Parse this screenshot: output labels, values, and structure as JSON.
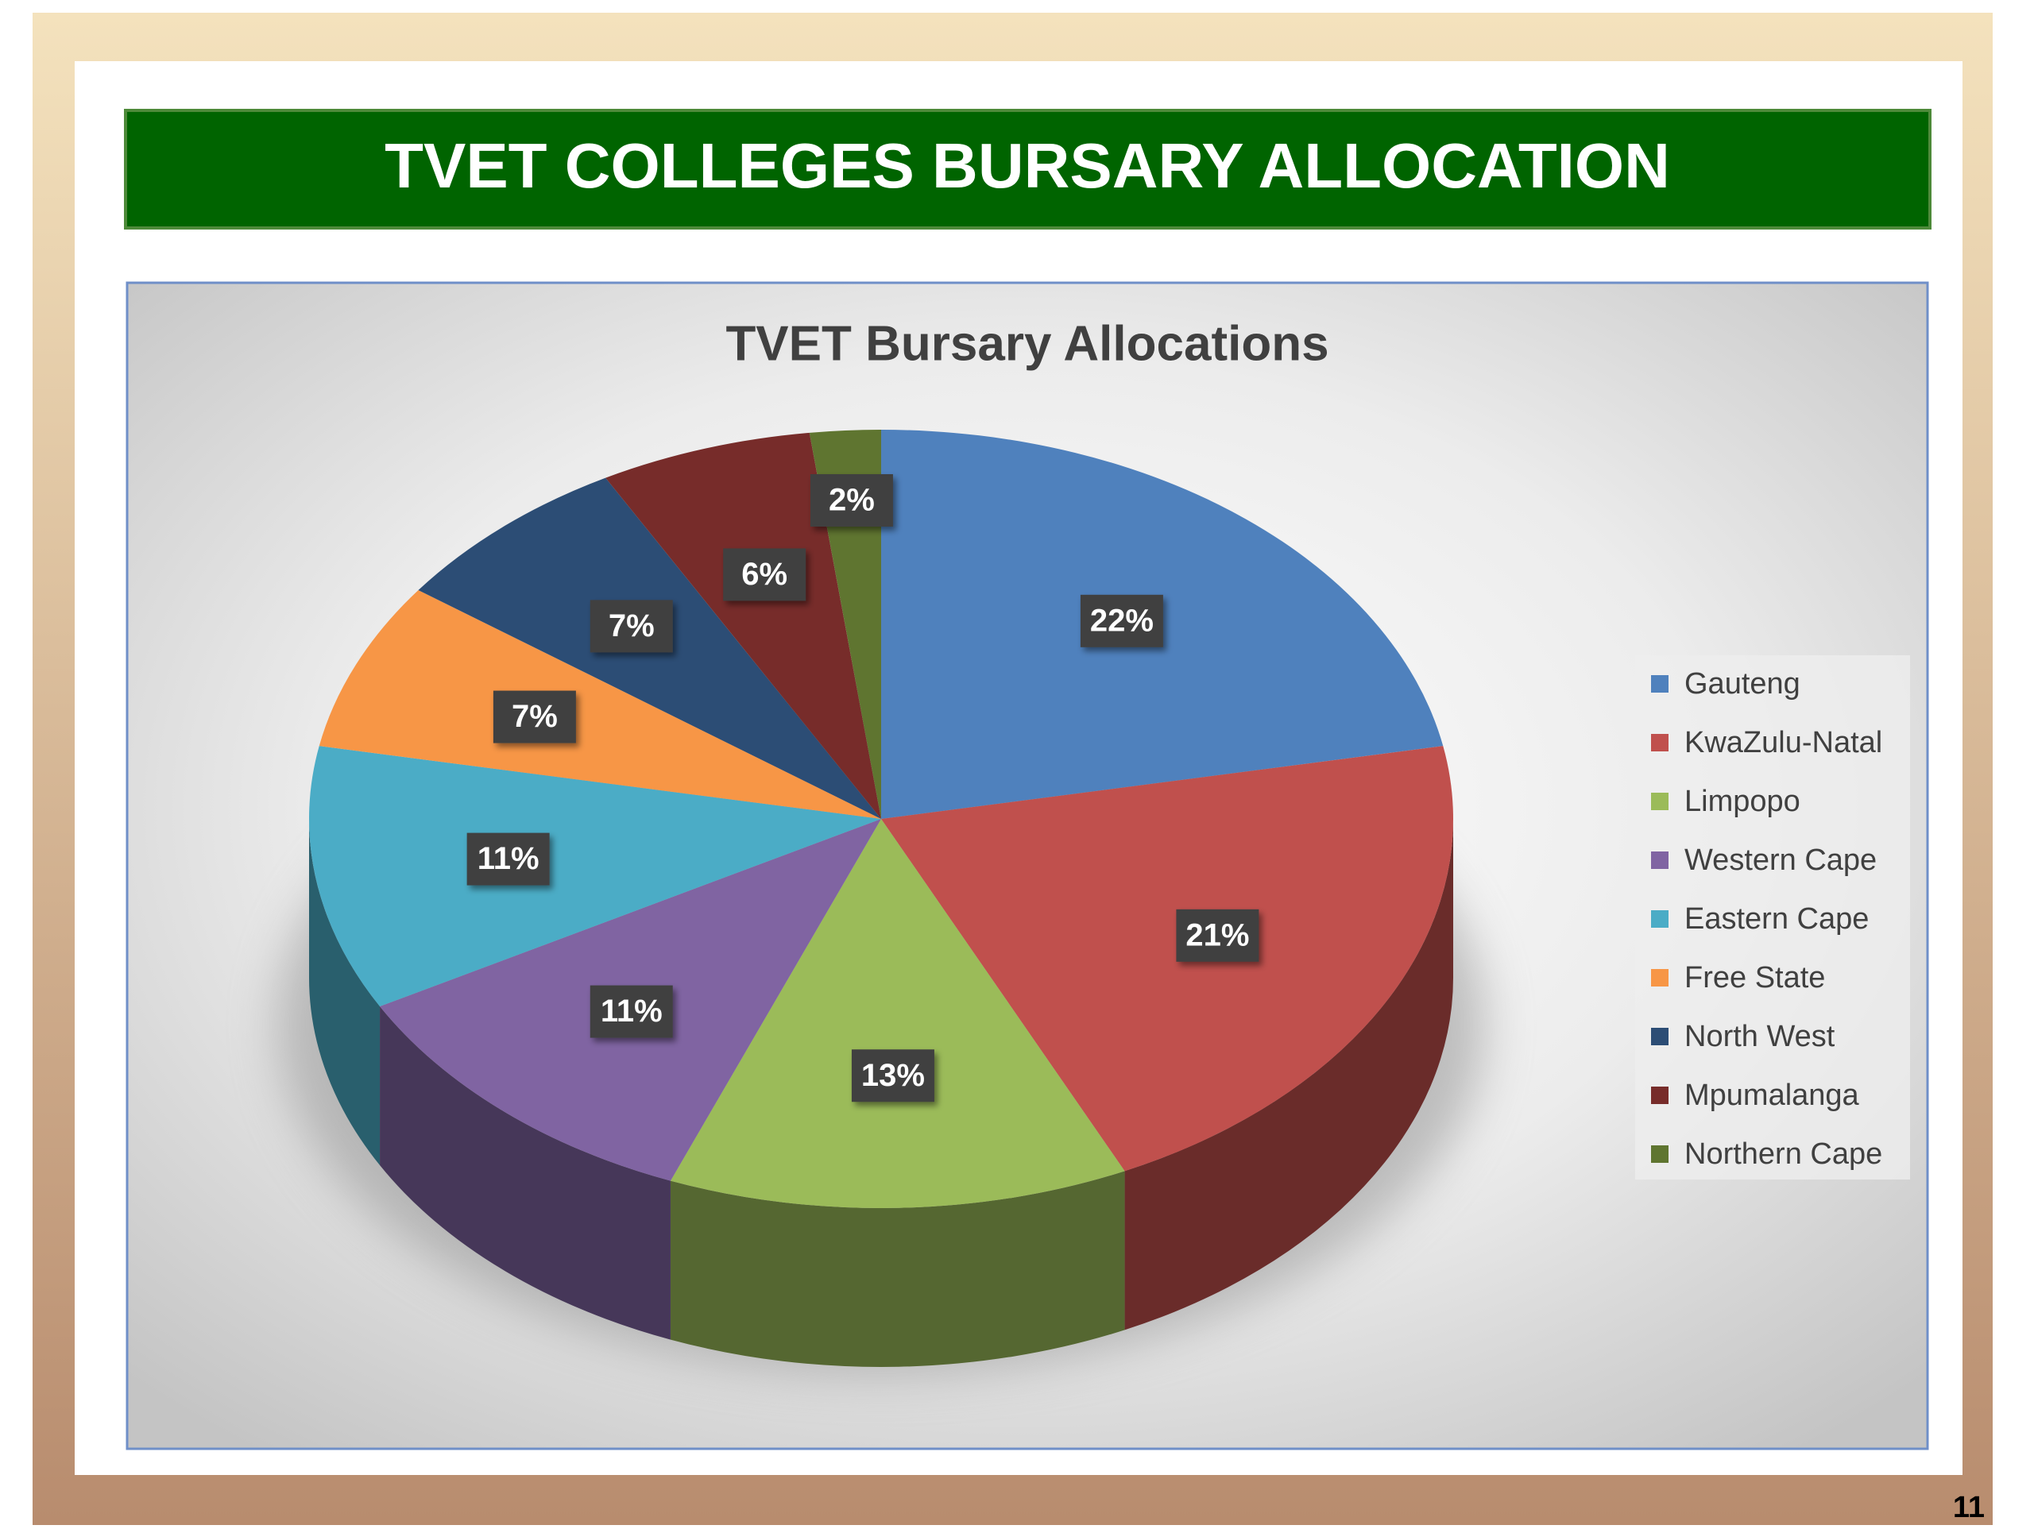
{
  "header": {
    "title": "TVET COLLEGES BURSARY ALLOCATION"
  },
  "page_number": "11",
  "chart_data": {
    "type": "pie",
    "title": "TVET Bursary Allocations",
    "categories": [
      "Gauteng",
      "KwaZulu-Natal",
      "Limpopo",
      "Western Cape",
      "Eastern Cape",
      "Free State",
      "North West",
      "Mpumalanga",
      "Northern Cape"
    ],
    "values": [
      22,
      21,
      13,
      11,
      11,
      7,
      7,
      6,
      2
    ],
    "value_labels": [
      "22%",
      "21%",
      "13%",
      "11%",
      "11%",
      "7%",
      "7%",
      "6%",
      "2%"
    ],
    "colors": [
      "#4f81bd",
      "#c0504d",
      "#9bbb59",
      "#8064a2",
      "#4bacc6",
      "#f79646",
      "#2c4d75",
      "#772c2a",
      "#5f7530"
    ],
    "legend": "right"
  }
}
